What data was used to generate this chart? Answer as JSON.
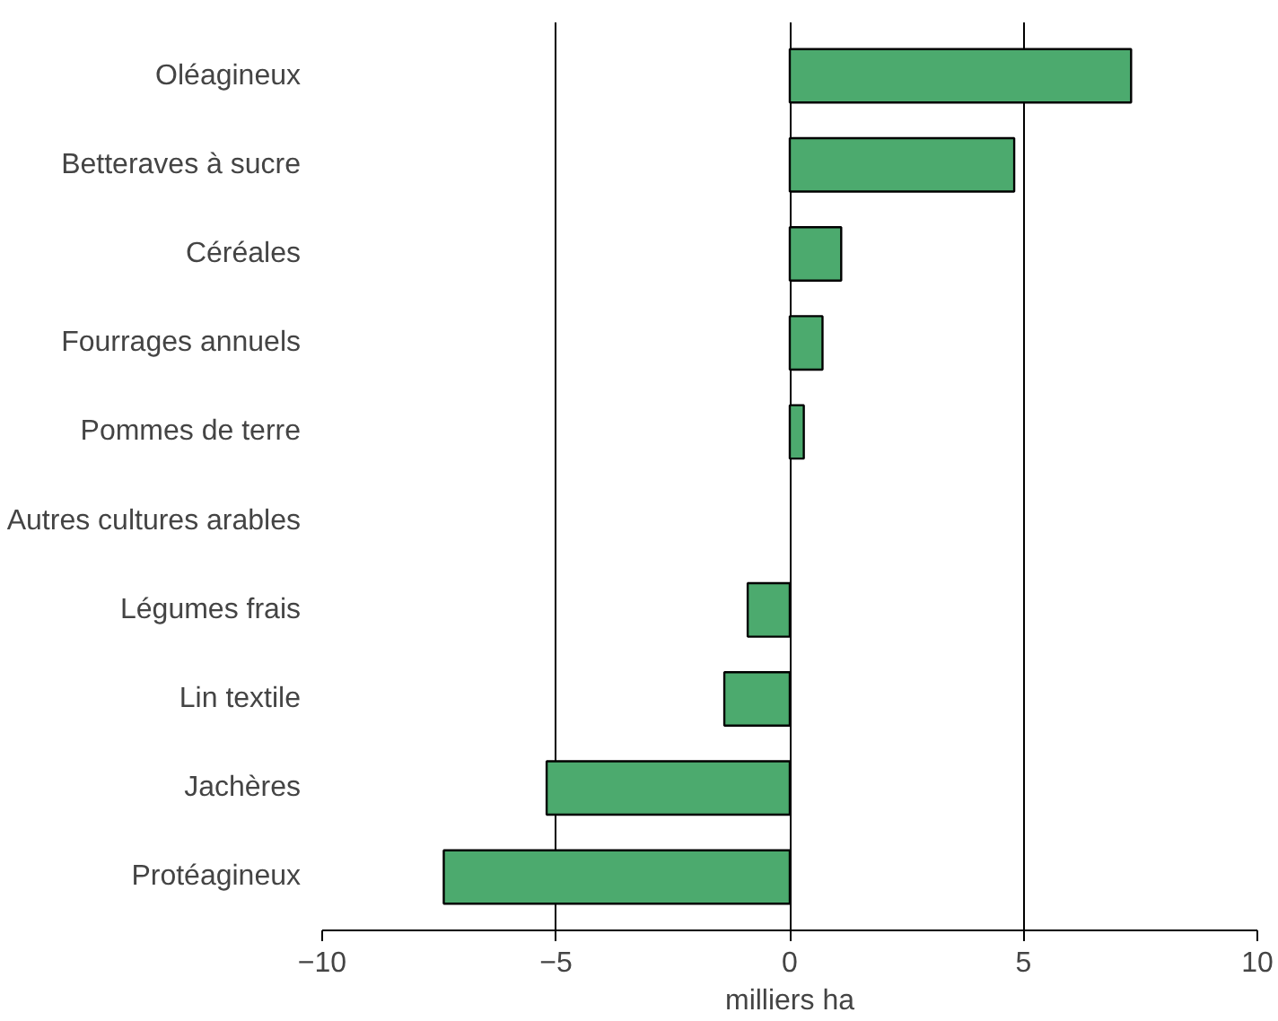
{
  "chart_data": {
    "type": "bar",
    "orientation": "horizontal",
    "categories": [
      "Oléagineux",
      "Betteraves à sucre",
      "Céréales",
      "Fourrages annuels",
      "Pommes de terre",
      "Autres cultures arables",
      "Légumes frais",
      "Lin textile",
      "Jachères",
      "Protéagineux"
    ],
    "values": [
      7.3,
      4.8,
      1.1,
      0.7,
      0.3,
      0,
      -0.9,
      -1.4,
      -5.2,
      -7.4
    ],
    "color": "#4caa6e",
    "xlim": [
      -10,
      10
    ],
    "xticks": [
      -10,
      -5,
      0,
      5,
      10
    ],
    "grid": "x",
    "xlabel": "milliers ha"
  }
}
